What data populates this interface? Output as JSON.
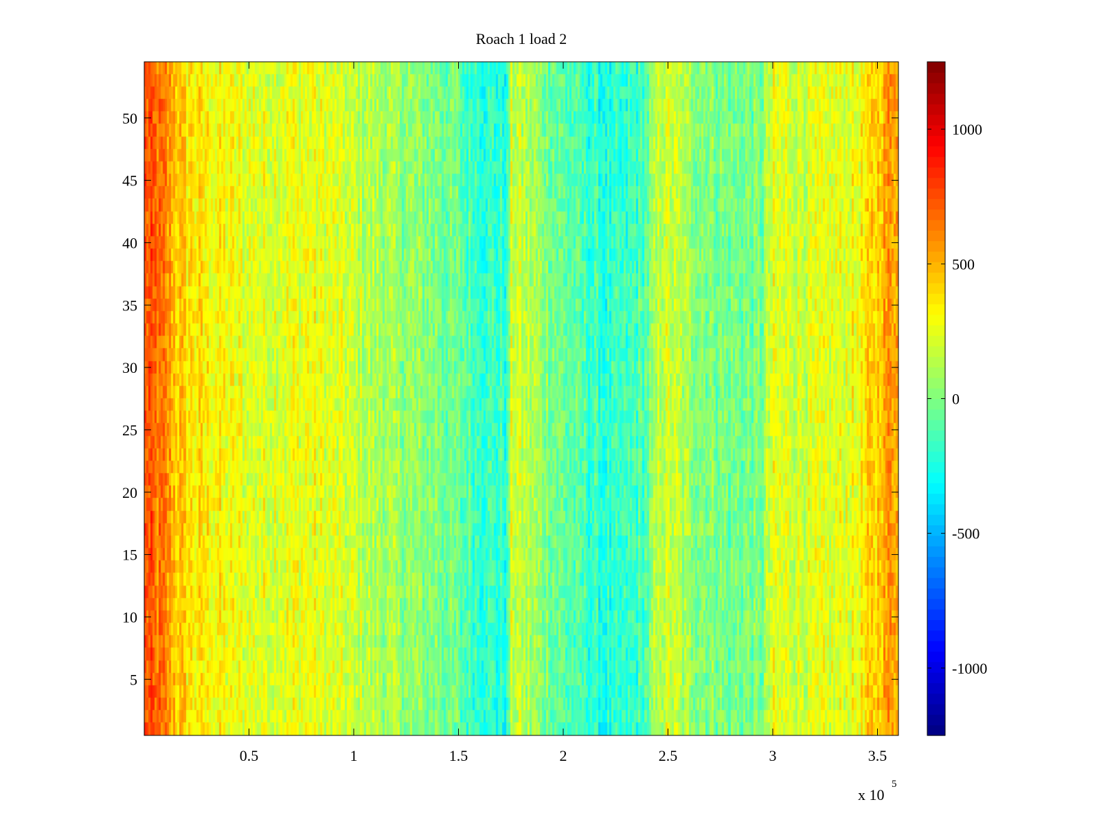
{
  "chart_data": {
    "type": "heatmap",
    "title": "Roach 1 load 2",
    "xlabel": "",
    "ylabel": "",
    "x_axis": {
      "range": [
        0,
        3.6
      ],
      "ticks": [
        0.5,
        1,
        1.5,
        2,
        2.5,
        3,
        3.5
      ],
      "tick_labels": [
        "0.5",
        "1",
        "1.5",
        "2",
        "2.5",
        "3",
        "3.5"
      ],
      "multiplier_label": "x 10",
      "multiplier_exponent": "5"
    },
    "y_axis": {
      "range": [
        0.5,
        54.5
      ],
      "ticks": [
        5,
        10,
        15,
        20,
        25,
        30,
        35,
        40,
        45,
        50
      ],
      "tick_labels": [
        "5",
        "10",
        "15",
        "20",
        "25",
        "30",
        "35",
        "40",
        "45",
        "50"
      ]
    },
    "colorbar": {
      "colormap": "jet",
      "range": [
        -1250,
        1250
      ],
      "ticks": [
        -1000,
        -500,
        0,
        500,
        1000
      ],
      "tick_labels": [
        "-1000",
        "-500",
        "0",
        "500",
        "1000"
      ]
    },
    "rows": 54,
    "mean_profile": {
      "x": [
        0,
        0.1,
        0.2,
        0.5,
        0.8,
        1.0,
        1.2,
        1.4,
        1.6,
        1.74,
        1.75,
        1.85,
        2.0,
        2.2,
        2.3,
        2.4,
        2.46,
        2.5,
        2.6,
        2.8,
        2.95,
        3.0,
        3.2,
        3.4,
        3.6
      ],
      "value": [
        750,
        600,
        380,
        240,
        270,
        170,
        60,
        0,
        -120,
        -180,
        230,
        130,
        -40,
        -200,
        -180,
        -80,
        160,
        200,
        60,
        -20,
        -30,
        230,
        200,
        270,
        620
      ]
    }
  }
}
